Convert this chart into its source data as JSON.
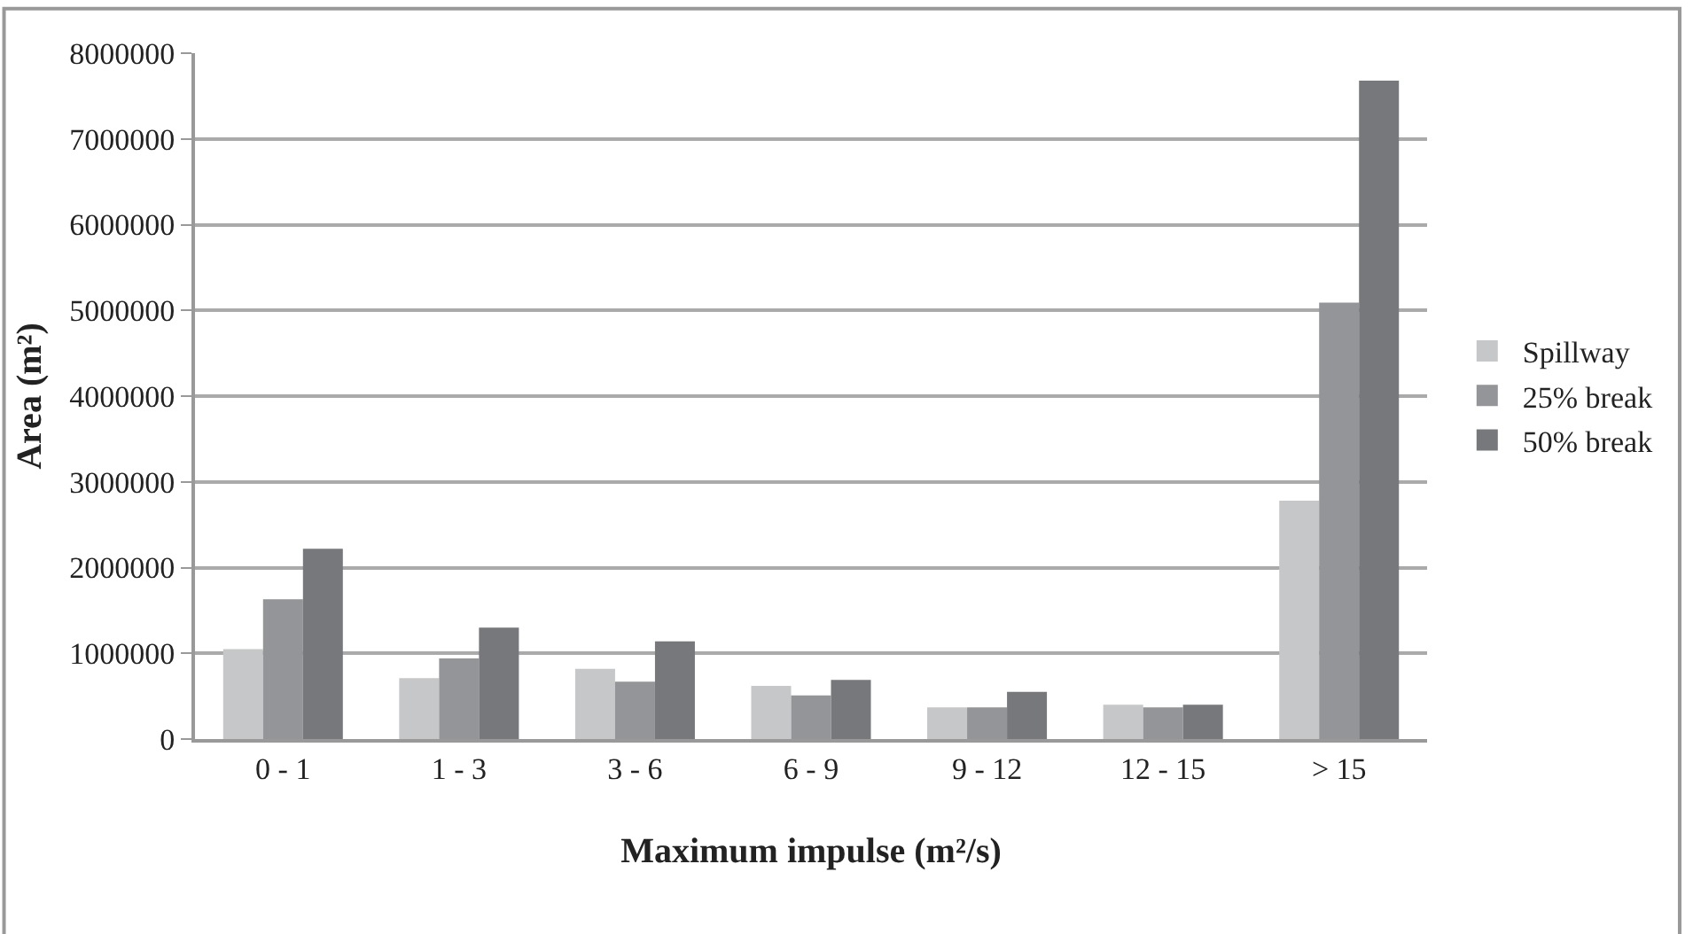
{
  "chart_data": {
    "type": "bar",
    "xlabel": "Maximum impulse (m²/s)",
    "ylabel": "Area (m²)",
    "categories": [
      "0 - 1",
      "1 - 3",
      "3 - 6",
      "6 - 9",
      "9 - 12",
      "12 - 15",
      "> 15"
    ],
    "series": [
      {
        "name": "Spillway",
        "color": "#c6c7c8",
        "values": [
          1050000,
          710000,
          820000,
          620000,
          370000,
          400000,
          2780000
        ]
      },
      {
        "name": "25% break",
        "color": "#949598",
        "values": [
          1630000,
          940000,
          670000,
          510000,
          370000,
          370000,
          5090000
        ]
      },
      {
        "name": "50% break",
        "color": "#77787c",
        "values": [
          2220000,
          1300000,
          1140000,
          690000,
          550000,
          400000,
          7680000
        ]
      }
    ],
    "ylim": [
      0,
      8000000
    ],
    "yticks": [
      0,
      1000000,
      2000000,
      3000000,
      4000000,
      5000000,
      6000000,
      7000000,
      8000000
    ],
    "grid": "y",
    "legend": "right"
  }
}
